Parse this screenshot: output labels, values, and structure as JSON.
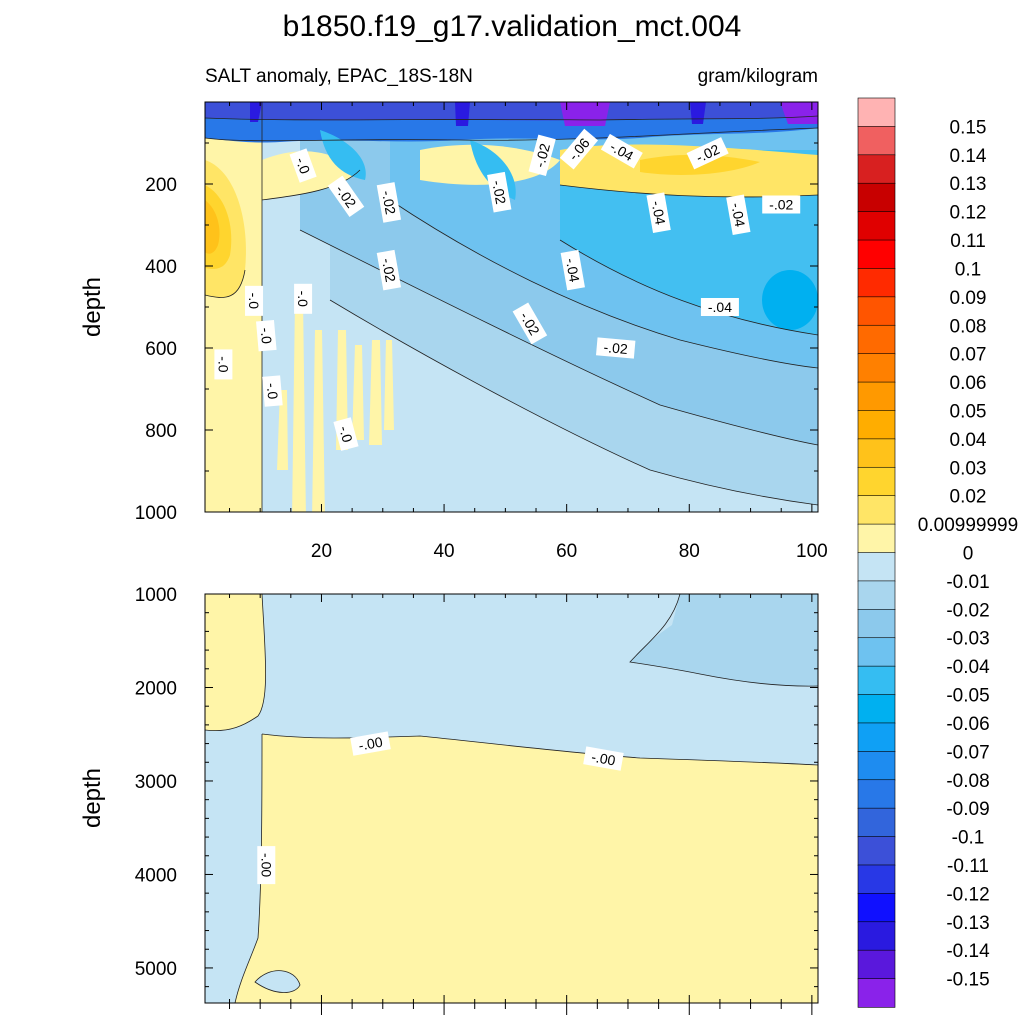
{
  "figure": {
    "title": "b1850.f19_g17.validation_mct.004",
    "left_subtitle": "SALT anomaly, EPAC_18S-18N",
    "right_subtitle": "gram/kilogram"
  },
  "chart_data": [
    {
      "type": "heatmap",
      "panel": "upper",
      "variable": "SALT anomaly",
      "region": "EPAC_18S-18N",
      "units": "gram/kilogram",
      "xlabel": "",
      "ylabel": "depth",
      "xlim": [
        1,
        101
      ],
      "ylim": [
        1000,
        0
      ],
      "x_ticks": [
        20,
        40,
        60,
        80,
        100
      ],
      "y_ticks": [
        200,
        400,
        600,
        800,
        1000
      ],
      "grid": false,
      "contour_labels": [
        {
          "x": 17,
          "y": 155,
          "text": "-.0"
        },
        {
          "x": 24,
          "y": 230,
          "text": "-.02"
        },
        {
          "x": 31,
          "y": 245,
          "text": "-.02"
        },
        {
          "x": 49,
          "y": 220,
          "text": "-.02"
        },
        {
          "x": 56,
          "y": 130,
          "text": "-.02"
        },
        {
          "x": 62,
          "y": 115,
          "text": "-.06"
        },
        {
          "x": 69,
          "y": 120,
          "text": "-.04"
        },
        {
          "x": 75,
          "y": 270,
          "text": "-.04"
        },
        {
          "x": 83,
          "y": 125,
          "text": "-.02"
        },
        {
          "x": 88,
          "y": 275,
          "text": "-.04"
        },
        {
          "x": 95,
          "y": 250,
          "text": "-.02"
        },
        {
          "x": 31,
          "y": 410,
          "text": "-.02"
        },
        {
          "x": 61,
          "y": 410,
          "text": "-.04"
        },
        {
          "x": 54,
          "y": 540,
          "text": "-.02"
        },
        {
          "x": 85,
          "y": 500,
          "text": "-.04"
        },
        {
          "x": 68,
          "y": 600,
          "text": "-.02"
        },
        {
          "x": 9,
          "y": 485,
          "text": "-.0"
        },
        {
          "x": 17,
          "y": 480,
          "text": "-.0"
        },
        {
          "x": 11,
          "y": 570,
          "text": "-.0"
        },
        {
          "x": 4,
          "y": 640,
          "text": "-.0"
        },
        {
          "x": 12,
          "y": 705,
          "text": "-.0"
        },
        {
          "x": 24,
          "y": 810,
          "text": "-.0"
        }
      ]
    },
    {
      "type": "heatmap",
      "panel": "lower",
      "variable": "SALT anomaly",
      "units": "gram/kilogram",
      "xlabel": "",
      "ylabel": "depth",
      "xlim": [
        1,
        101
      ],
      "ylim": [
        5375,
        1000
      ],
      "y_ticks": [
        1000,
        2000,
        3000,
        4000,
        5000
      ],
      "grid": false,
      "contour_labels": [
        {
          "x": 28,
          "y": 2600,
          "text": "-.00"
        },
        {
          "x": 66,
          "y": 2760,
          "text": "-.00"
        },
        {
          "x": 11,
          "y": 3900,
          "text": "-.00"
        }
      ]
    }
  ],
  "colorbar": {
    "labels": [
      "0.15",
      "0.14",
      "0.13",
      "0.12",
      "0.11",
      "0.1",
      "0.09",
      "0.08",
      "0.07",
      "0.06",
      "0.05",
      "0.04",
      "0.03",
      "0.02",
      "0.00999999",
      "0",
      "-0.01",
      "-0.02",
      "-0.03",
      "-0.04",
      "-0.05",
      "-0.06",
      "-0.07",
      "-0.08",
      "-0.09",
      "-0.1",
      "-0.11",
      "-0.12",
      "-0.13",
      "-0.14",
      "-0.15"
    ],
    "colors": [
      "#ffb3b3",
      "#f06060",
      "#d82020",
      "#c80000",
      "#e00000",
      "#ff0000",
      "#ff2a00",
      "#ff5500",
      "#ff6a00",
      "#ff8000",
      "#ff9900",
      "#ffad00",
      "#ffc21a",
      "#ffd52e",
      "#ffe566",
      "#fff5a8",
      "#c5e4f4",
      "#a9d6ee",
      "#8cc9ec",
      "#6ec2f0",
      "#35bdf2",
      "#00b0f0",
      "#0fa0f5",
      "#1e8cf0",
      "#2878e8",
      "#3265dc",
      "#3c50d8",
      "#2838e6",
      "#1010ff",
      "#2a1ae0",
      "#5a18dc",
      "#8a22ea"
    ]
  }
}
